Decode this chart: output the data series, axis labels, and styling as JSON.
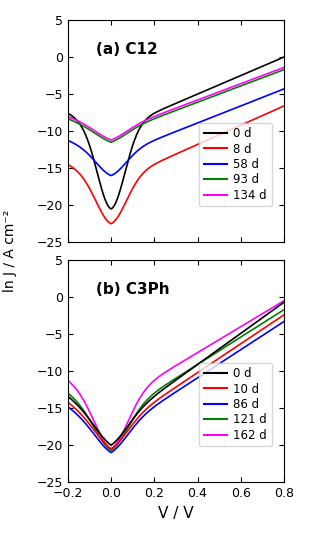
{
  "title_a": "(a) C12",
  "title_b": "(b) C3Ph",
  "xlabel": "V / V",
  "ylabel": "ln J / A cm⁻²",
  "xlim": [
    -0.2,
    0.8
  ],
  "ylim": [
    -25,
    5
  ],
  "yticks": [
    -25,
    -20,
    -15,
    -10,
    -5,
    0,
    5
  ],
  "xticks": [
    -0.2,
    0.0,
    0.2,
    0.4,
    0.6,
    0.8
  ],
  "curves_a": [
    {
      "color": "black",
      "J_flat": -10.0,
      "dip": -20.5,
      "slope": 12.5,
      "sharp": 120
    },
    {
      "color": "red",
      "J_flat": -17.0,
      "dip": -22.5,
      "slope": 13.0,
      "sharp": 100
    },
    {
      "color": "blue",
      "J_flat": -13.5,
      "dip": -16.0,
      "slope": 11.5,
      "sharp": 100
    },
    {
      "color": "green",
      "J_flat": -10.5,
      "dip": -11.5,
      "slope": 11.0,
      "sharp": 90
    },
    {
      "color": "magenta",
      "J_flat": -10.2,
      "dip": -11.2,
      "slope": 11.0,
      "sharp": 90
    }
  ],
  "labels_a": [
    "0 d",
    "8 d",
    "58 d",
    "93 d",
    "134 d"
  ],
  "draw_order_a": [
    1,
    0,
    2,
    3,
    4
  ],
  "curves_b": [
    {
      "color": "black",
      "J_flat": -17.5,
      "dip": -20.0,
      "slope": 21.0,
      "sharp": 80
    },
    {
      "color": "red",
      "J_flat": -18.0,
      "dip": -20.5,
      "slope": 19.5,
      "sharp": 80
    },
    {
      "color": "blue",
      "J_flat": -18.5,
      "dip": -21.0,
      "slope": 19.0,
      "sharp": 80
    },
    {
      "color": "green",
      "J_flat": -16.5,
      "dip": -20.7,
      "slope": 18.5,
      "sharp": 80
    },
    {
      "color": "magenta",
      "J_flat": -14.5,
      "dip": -20.5,
      "slope": 17.5,
      "sharp": 80
    }
  ],
  "labels_b": [
    "0 d",
    "10 d",
    "86 d",
    "121 d",
    "162 d"
  ],
  "draw_order_b": [
    4,
    3,
    2,
    1,
    0
  ]
}
